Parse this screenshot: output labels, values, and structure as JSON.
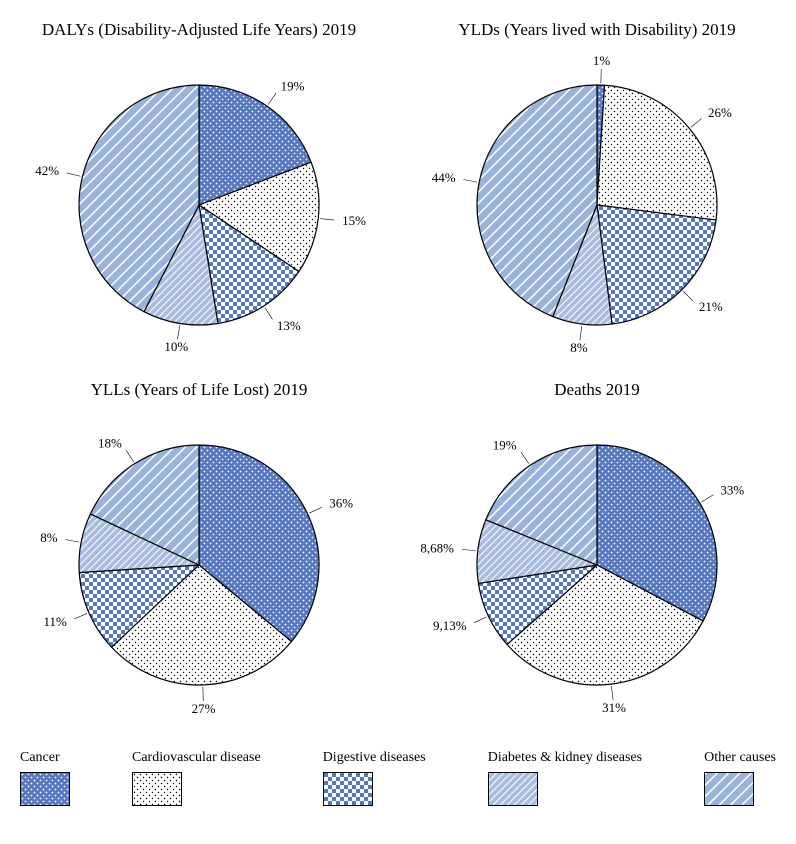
{
  "colors": {
    "cancer": "#5678c0",
    "cardio": "#ffffff",
    "digest": "#5678c0",
    "diabetes": "#a9bde0",
    "other": "#99b3dd",
    "stroke": "#000000",
    "background": "#ffffff",
    "text": "#000000"
  },
  "patterns": {
    "cancer": "dots-fine",
    "cardio": "dots-fine-outline",
    "digest": "checker",
    "diabetes": "diag-dense",
    "other": "diag-wide"
  },
  "legend": [
    {
      "label": "Cancer",
      "key": "cancer"
    },
    {
      "label": "Cardiovascular disease",
      "key": "cardio"
    },
    {
      "label": "Digestive diseases",
      "key": "digest"
    },
    {
      "label": "Diabetes & kidney diseases",
      "key": "diabetes"
    },
    {
      "label": "Other causes",
      "key": "other"
    }
  ],
  "charts": [
    {
      "title": "DALYs (Disability-Adjusted Life Years) 2019",
      "type": "pie",
      "radius": 120,
      "start_angle": -90,
      "slices": [
        {
          "key": "cancer",
          "value": 19,
          "label": "19%"
        },
        {
          "key": "cardio",
          "value": 15,
          "label": "15%"
        },
        {
          "key": "digest",
          "value": 13,
          "label": "13%"
        },
        {
          "key": "diabetes",
          "value": 10,
          "label": "10%"
        },
        {
          "key": "other",
          "value": 42,
          "label": "42%"
        }
      ]
    },
    {
      "title": "YLDs (Years lived with Disability) 2019",
      "type": "pie",
      "radius": 120,
      "start_angle": -90,
      "slices": [
        {
          "key": "cancer",
          "value": 1,
          "label": "1%"
        },
        {
          "key": "cardio",
          "value": 26,
          "label": "26%"
        },
        {
          "key": "digest",
          "value": 21,
          "label": "21%"
        },
        {
          "key": "diabetes",
          "value": 8,
          "label": "8%"
        },
        {
          "key": "other",
          "value": 44,
          "label": "44%"
        }
      ]
    },
    {
      "title": "YLLs (Years of Life Lost) 2019",
      "type": "pie",
      "radius": 120,
      "start_angle": -90,
      "slices": [
        {
          "key": "cancer",
          "value": 36,
          "label": "36%"
        },
        {
          "key": "cardio",
          "value": 27,
          "label": "27%"
        },
        {
          "key": "digest",
          "value": 11,
          "label": "11%"
        },
        {
          "key": "diabetes",
          "value": 8,
          "label": "8%"
        },
        {
          "key": "other",
          "value": 18,
          "label": "18%"
        }
      ]
    },
    {
      "title": "Deaths 2019",
      "type": "pie",
      "radius": 120,
      "start_angle": -90,
      "slices": [
        {
          "key": "cancer",
          "value": 33,
          "label": "33%"
        },
        {
          "key": "cardio",
          "value": 31,
          "label": "31%"
        },
        {
          "key": "digest",
          "value": 9.13,
          "label": "9,13%"
        },
        {
          "key": "diabetes",
          "value": 8.68,
          "label": "8,68%"
        },
        {
          "key": "other",
          "value": 19,
          "label": "19%"
        }
      ]
    }
  ],
  "layout": {
    "title_fontsize": 17,
    "label_fontsize": 13,
    "legend_fontsize": 14,
    "stroke_width": 1.2,
    "label_offset": 24,
    "swatch_w": 48,
    "swatch_h": 32
  }
}
